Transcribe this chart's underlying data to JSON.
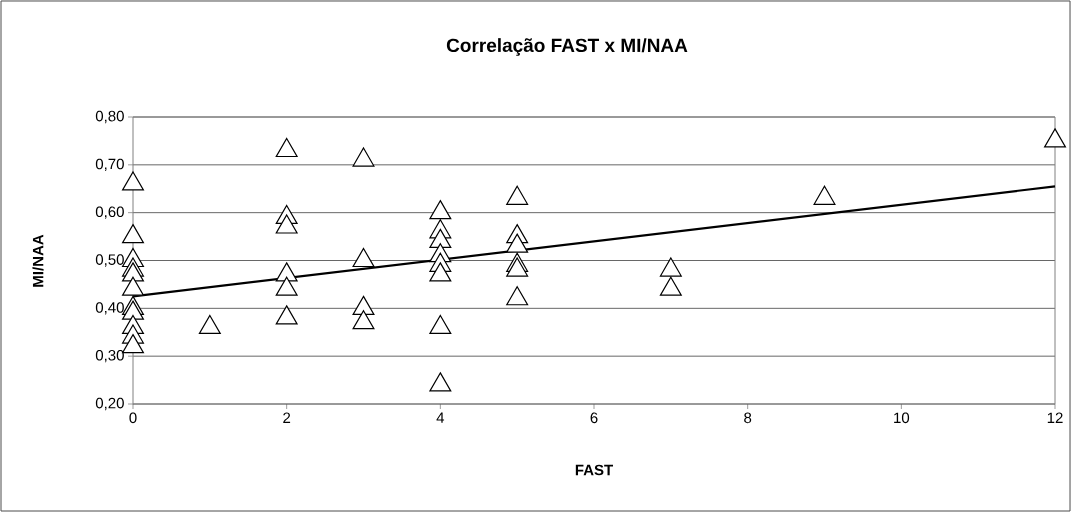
{
  "chart_data": {
    "type": "scatter",
    "title": "Correlação FAST x MI/NAA",
    "xlabel": "FAST",
    "ylabel": "MI/NAA",
    "xlim": [
      0,
      12
    ],
    "xticks": [
      0,
      2,
      4,
      6,
      8,
      10,
      12
    ],
    "ylim": [
      0.2,
      0.8
    ],
    "yticks": [
      {
        "value": 0.2,
        "label": "0,20"
      },
      {
        "value": 0.3,
        "label": "0,30"
      },
      {
        "value": 0.4,
        "label": "0,40"
      },
      {
        "value": 0.5,
        "label": "0,50"
      },
      {
        "value": 0.6,
        "label": "0,60"
      },
      {
        "value": 0.7,
        "label": "0,70"
      },
      {
        "value": 0.8,
        "label": "0,80"
      }
    ],
    "grid": "y",
    "series": [
      {
        "type": "scatter",
        "marker": "triangle",
        "color": "#000000",
        "x": [
          0,
          0,
          0,
          0,
          0,
          0,
          0,
          0,
          0,
          0,
          0,
          1,
          2,
          2,
          2,
          2,
          2,
          2,
          3,
          3,
          3,
          3,
          4,
          4,
          4,
          4,
          4,
          4,
          4,
          4,
          5,
          5,
          5,
          5,
          5,
          5,
          7,
          7,
          9,
          12
        ],
        "values": [
          0.66,
          0.55,
          0.5,
          0.48,
          0.47,
          0.44,
          0.4,
          0.39,
          0.36,
          0.34,
          0.32,
          0.36,
          0.73,
          0.59,
          0.57,
          0.47,
          0.44,
          0.38,
          0.71,
          0.5,
          0.4,
          0.37,
          0.6,
          0.56,
          0.54,
          0.51,
          0.49,
          0.47,
          0.36,
          0.24,
          0.63,
          0.55,
          0.53,
          0.49,
          0.48,
          0.42,
          0.48,
          0.44,
          0.63,
          0.75
        ]
      },
      {
        "type": "line",
        "color": "#000000",
        "x": [
          0,
          12
        ],
        "values": [
          0.425,
          0.655
        ]
      }
    ]
  }
}
